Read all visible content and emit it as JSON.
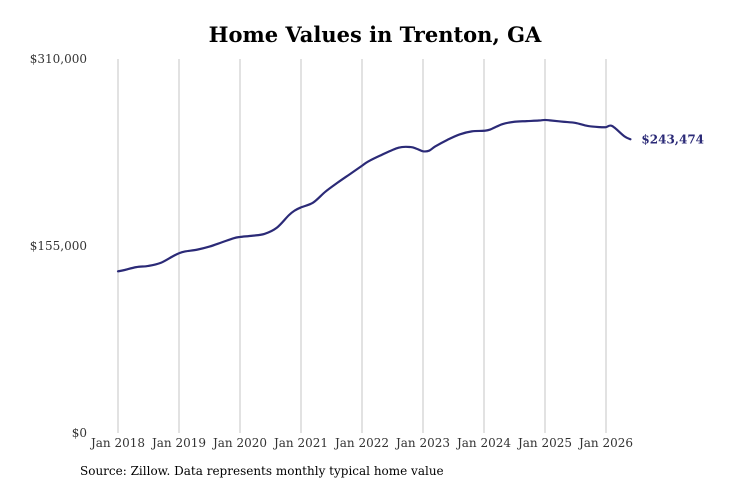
{
  "chart_data": {
    "type": "line",
    "title": "Home Values in Trenton, GA",
    "xlabel": "",
    "ylabel": "",
    "ylim": [
      0,
      310000
    ],
    "yticks": [
      {
        "value": 0,
        "label": "$0"
      },
      {
        "value": 155000,
        "label": "$155,000"
      },
      {
        "value": 310000,
        "label": "$310,000"
      }
    ],
    "xticks": [
      {
        "value": 2018.0,
        "label": "Jan 2018"
      },
      {
        "value": 2019.0,
        "label": "Jan 2019"
      },
      {
        "value": 2020.0,
        "label": "Jan 2020"
      },
      {
        "value": 2021.0,
        "label": "Jan 2021"
      },
      {
        "value": 2022.0,
        "label": "Jan 2022"
      },
      {
        "value": 2023.0,
        "label": "Jan 2023"
      },
      {
        "value": 2024.0,
        "label": "Jan 2024"
      },
      {
        "value": 2025.0,
        "label": "Jan 2025"
      },
      {
        "value": 2026.0,
        "label": "Jan 2026"
      }
    ],
    "xlim": [
      2017.7,
      2026.7
    ],
    "grid": "vertical",
    "line_color": "#2b2a77",
    "end_label": "$243,474",
    "series": [
      {
        "x": [
          2018.0,
          2018.1,
          2018.3,
          2018.5,
          2018.7,
          2018.9,
          2019.0,
          2019.1,
          2019.3,
          2019.5,
          2019.7,
          2019.9,
          2020.0,
          2020.2,
          2020.4,
          2020.6,
          2020.8,
          2020.9,
          2021.0,
          2021.2,
          2021.4,
          2021.6,
          2021.8,
          2022.0,
          2022.1,
          2022.3,
          2022.6,
          2022.8,
          2022.9,
          2023.0,
          2023.1,
          2023.2,
          2023.4,
          2023.6,
          2023.8,
          2024.0,
          2024.1,
          2024.3,
          2024.5,
          2024.7,
          2024.9,
          2025.0,
          2025.1,
          2025.3,
          2025.5,
          2025.7,
          2025.9,
          2026.0,
          2026.1,
          2026.3,
          2026.4
        ],
        "y": [
          134000,
          135000,
          137500,
          138500,
          141000,
          146500,
          149000,
          150500,
          152000,
          154500,
          158000,
          161500,
          162500,
          163500,
          165000,
          170000,
          180500,
          184500,
          187000,
          191000,
          200000,
          207500,
          214500,
          221500,
          225000,
          230000,
          236500,
          237000,
          235500,
          233500,
          234000,
          237500,
          243000,
          247500,
          250000,
          250500,
          251500,
          256000,
          258000,
          258500,
          259000,
          259500,
          259000,
          258000,
          257000,
          254500,
          253500,
          253500,
          254500,
          246000,
          243474
        ]
      }
    ]
  },
  "source_text": "Source: Zillow. Data represents monthly typical home value"
}
